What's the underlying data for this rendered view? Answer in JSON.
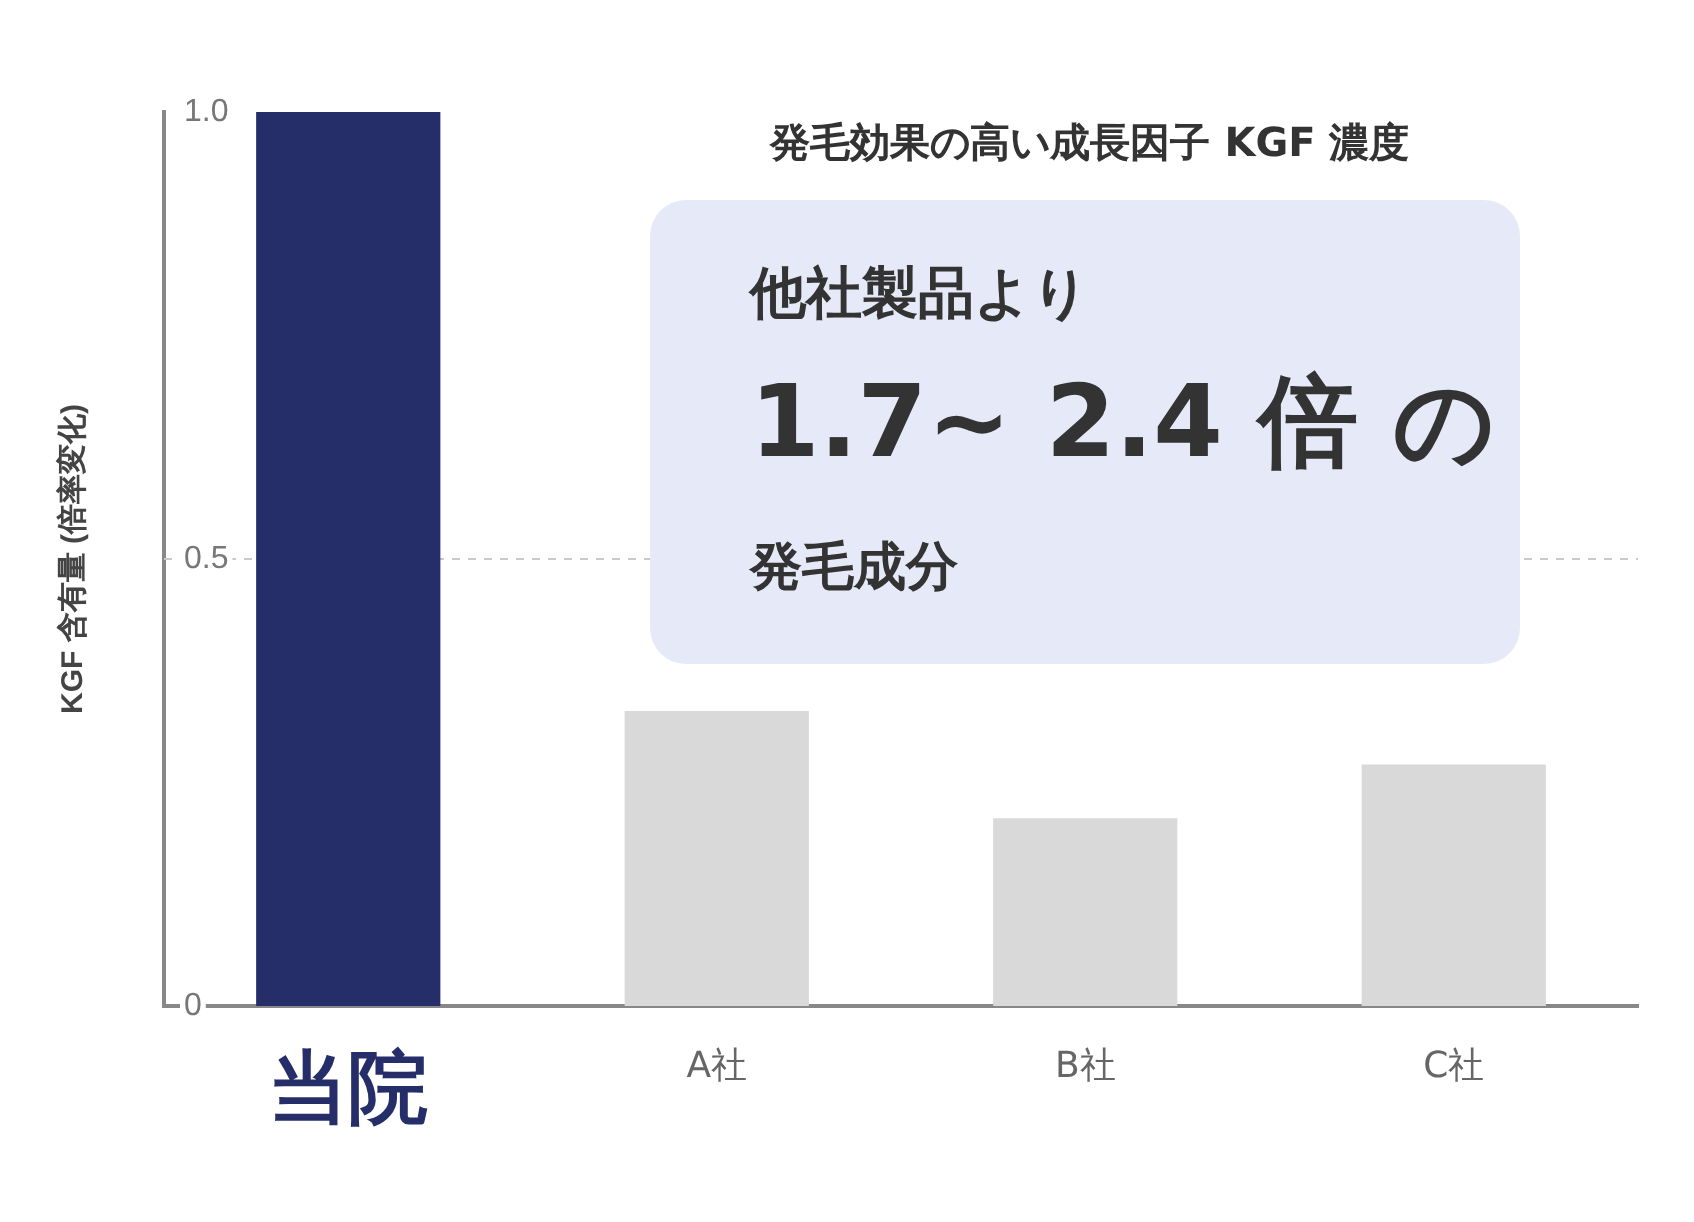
{
  "chart_data": {
    "type": "bar",
    "title": "発毛効果の高い成長因子 KGF 濃度",
    "ylabel": "KGF 含有量 (倍率変化)",
    "categories": [
      "当院",
      "A社",
      "B社",
      "C社"
    ],
    "values": [
      1.0,
      0.33,
      0.21,
      0.27
    ],
    "colors": [
      "#262e6a",
      "#d9d9d9",
      "#d9d9d9",
      "#d9d9d9"
    ],
    "ylim": [
      0,
      1
    ],
    "yticks": [
      0,
      {
        "value": 0.5,
        "label": "0.5"
      },
      {
        "value": 1,
        "label": "1.0"
      }
    ],
    "grid": false,
    "legend": false,
    "ref_lines": [
      {
        "axis": "y",
        "value": 0.5,
        "color": "#c8c8c8",
        "line_style": "dashed"
      }
    ],
    "annotations": [
      "他社製品より",
      "1.7~ 2.4 倍 の",
      "発毛成分"
    ]
  }
}
